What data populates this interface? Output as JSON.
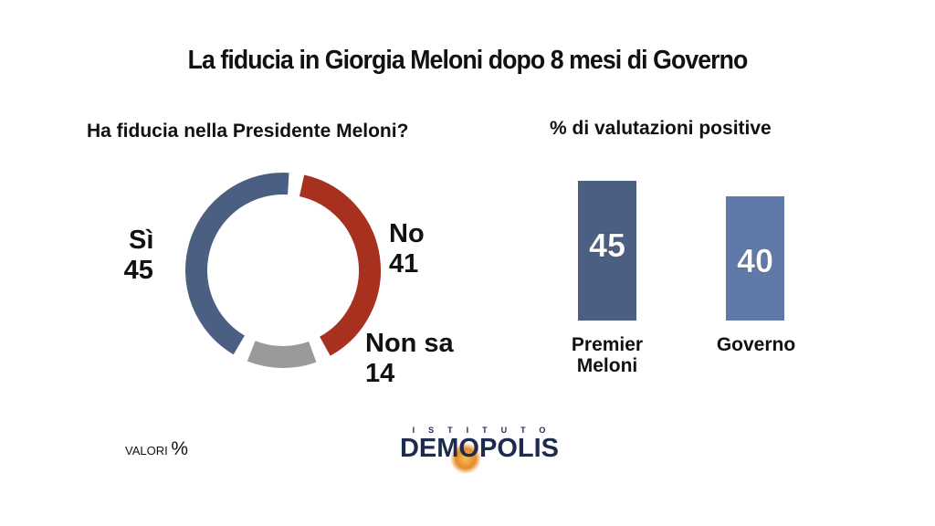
{
  "title": "La fiducia in Giorgia Meloni dopo 8 mesi di Governo",
  "footer": {
    "note_label": "VALORI",
    "note_unit": "%"
  },
  "logo": {
    "top": "ISTITUTO",
    "main": "DEMOPOLIS"
  },
  "colors": {
    "si": "#4a5f82",
    "no": "#a8301f",
    "non_sa": "#9a9a9a",
    "bar1": "#4a5f82",
    "bar2": "#5f7aa8"
  },
  "chart_data": [
    {
      "type": "pie",
      "title": "Ha fiducia nella Presidente Meloni?",
      "categories": [
        "Sì",
        "No",
        "Non sa"
      ],
      "values": [
        45,
        41,
        14
      ],
      "value_labels": [
        "45",
        "41",
        "14"
      ]
    },
    {
      "type": "bar",
      "title": "% di valutazioni positive",
      "categories": [
        "Premier Meloni",
        "Governo"
      ],
      "values": [
        45,
        40
      ],
      "value_labels": [
        "45",
        "40"
      ]
    }
  ]
}
